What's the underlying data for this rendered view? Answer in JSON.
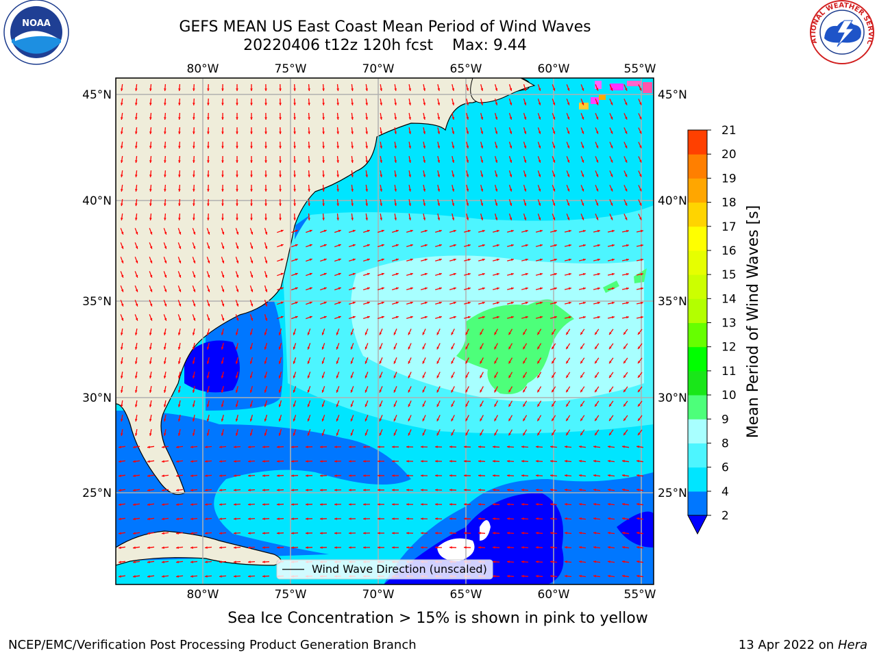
{
  "header": {
    "title_line1": "GEFS MEAN US East Coast Mean Period of Wind Waves",
    "title_line2": "20220406 t12z 120h fcst    Max: 9.44"
  },
  "logos": {
    "left": {
      "name": "noaa-logo",
      "text": "NOAA"
    },
    "right": {
      "name": "nws-logo",
      "text": "NATIONAL WEATHER SERVICE"
    }
  },
  "map": {
    "lon_labels": [
      "80°W",
      "75°W",
      "70°W",
      "65°W",
      "60°W",
      "55°W"
    ],
    "lat_labels": [
      "45°N",
      "40°N",
      "35°N",
      "30°N",
      "25°N"
    ],
    "legend_label": "Wind Wave Direction (unscaled)",
    "land_color": "#efedda",
    "arrow_color": "#ff0000"
  },
  "colorbar": {
    "label": "Mean Period of Wind Waves [s]",
    "tick_labels": [
      "2",
      "4",
      "6",
      "8",
      "9",
      "10",
      "11",
      "12",
      "13",
      "14",
      "15",
      "16",
      "17",
      "18",
      "19",
      "20",
      "21"
    ],
    "colors": [
      "#0077ff",
      "#00e5ff",
      "#4df5ff",
      "#a8ffff",
      "#4dff7a",
      "#19e619",
      "#00ff00",
      "#66ff00",
      "#b3ff00",
      "#ccff00",
      "#e6ff00",
      "#ffff00",
      "#ffd400",
      "#ffa600",
      "#ff7f00",
      "#ff4000",
      "#ff0000"
    ],
    "under_color": "#0000ff"
  },
  "caption": "Sea Ice Concentration > 15% is shown in pink to yellow",
  "footer": {
    "left": "NCEP/EMC/Verification Post Processing Product Generation Branch",
    "right_date": "13 Apr 2022 on",
    "right_machine": "Hera"
  }
}
